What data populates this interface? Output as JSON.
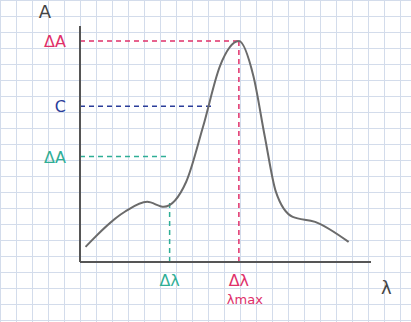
{
  "chart_data": {
    "type": "line",
    "x_label": "λ",
    "y_label": "A",
    "x": [
      1.9,
      15.4,
      23.1,
      28.8,
      36.5,
      42.3,
      48.1,
      54.6,
      59.6,
      63.5,
      67.3,
      73.1,
      80.8,
      92.3
    ],
    "values": [
      6.4,
      21.3,
      25.5,
      23.4,
      34,
      57.4,
      83,
      93.6,
      78.7,
      53.2,
      29.8,
      19.1,
      17,
      8.5
    ],
    "color": "#6b6b6b",
    "xlim": [
      0,
      100
    ],
    "ylim": [
      0,
      100
    ],
    "line_style": "solid",
    "annotations": [
      {
        "axis": "y",
        "value": 93.6,
        "to": 54.6,
        "label": "ΔA",
        "color": "#e0306a"
      },
      {
        "axis": "y",
        "value": 66,
        "to": 46,
        "label": "C",
        "color": "#2a3d9a"
      },
      {
        "axis": "y",
        "value": 44.7,
        "to": 30.8,
        "label": "ΔA",
        "color": "#2fae96"
      },
      {
        "axis": "x",
        "value": 30.8,
        "to": 25,
        "label": "Δλ",
        "color": "#2fae96"
      },
      {
        "axis": "x",
        "value": 54.6,
        "to": 93.6,
        "label": "Δλ",
        "sublabel": "λmax",
        "color": "#e0306a"
      }
    ]
  }
}
